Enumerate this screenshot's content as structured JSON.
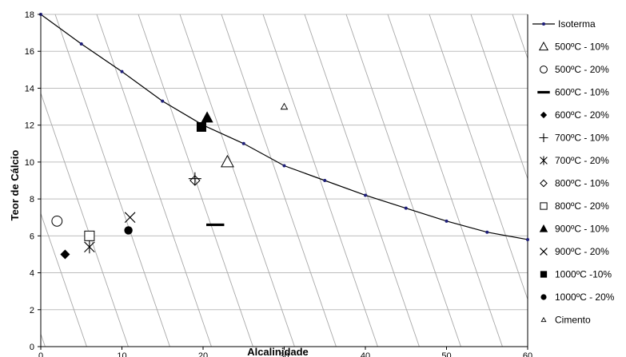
{
  "chart_data": {
    "type": "scatter",
    "xlabel": "Alcalinidade",
    "ylabel": "Teor de Cálcio",
    "xlim": [
      0,
      60
    ],
    "ylim": [
      0,
      18
    ],
    "xticks": [
      "0",
      "10",
      "20",
      "30",
      "40",
      "50",
      "60"
    ],
    "yticks": [
      "0",
      "2",
      "4",
      "6",
      "8",
      "10",
      "12",
      "14",
      "16",
      "18"
    ],
    "grid": "horizontal gridlines plus diagonal guide lines",
    "legend_position": "right",
    "isotherm": {
      "name": "Isoterma",
      "color": "#1f1f7a",
      "x": [
        0,
        5,
        10,
        15,
        20,
        25,
        30,
        35,
        40,
        45,
        50,
        55,
        60
      ],
      "y": [
        18.0,
        16.4,
        14.9,
        13.3,
        12.0,
        11.0,
        9.8,
        9.0,
        8.2,
        7.5,
        6.8,
        6.2,
        5.8
      ]
    },
    "series": [
      {
        "name": "500ºC - 10%",
        "marker": "triangle-open",
        "x": [
          23
        ],
        "y": [
          10
        ]
      },
      {
        "name": "500ºC - 20%",
        "marker": "circle-open",
        "x": [
          2
        ],
        "y": [
          6.8
        ]
      },
      {
        "name": "600ºC - 10%",
        "marker": "dash",
        "x": [
          21.5
        ],
        "y": [
          6.6
        ]
      },
      {
        "name": "600ºC - 20%",
        "marker": "diamond-filled",
        "x": [
          3
        ],
        "y": [
          5.0
        ]
      },
      {
        "name": "700ºC - 10%",
        "marker": "plus",
        "x": [
          19
        ],
        "y": [
          9.1
        ]
      },
      {
        "name": "700ºC -  20%",
        "marker": "asterisk",
        "x": [
          6
        ],
        "y": [
          5.4
        ]
      },
      {
        "name": "800ºC - 10%",
        "marker": "diamond-open",
        "x": [
          19
        ],
        "y": [
          9.0
        ]
      },
      {
        "name": "800ºC - 20%",
        "marker": "square-open",
        "x": [
          6
        ],
        "y": [
          6.0
        ]
      },
      {
        "name": "900ºC - 10%",
        "marker": "triangle-filled",
        "x": [
          20.5
        ],
        "y": [
          12.4
        ]
      },
      {
        "name": "900ºC - 20%",
        "marker": "x",
        "x": [
          11
        ],
        "y": [
          7.0
        ]
      },
      {
        "name": "1000ºC -10%",
        "marker": "square-filled",
        "x": [
          19.8
        ],
        "y": [
          11.9
        ]
      },
      {
        "name": "1000ºC - 20%",
        "marker": "circle-filled",
        "x": [
          10.8
        ],
        "y": [
          6.3
        ]
      },
      {
        "name": "Cimento",
        "marker": "triangle-small",
        "x": [
          30
        ],
        "y": [
          13
        ]
      }
    ]
  }
}
